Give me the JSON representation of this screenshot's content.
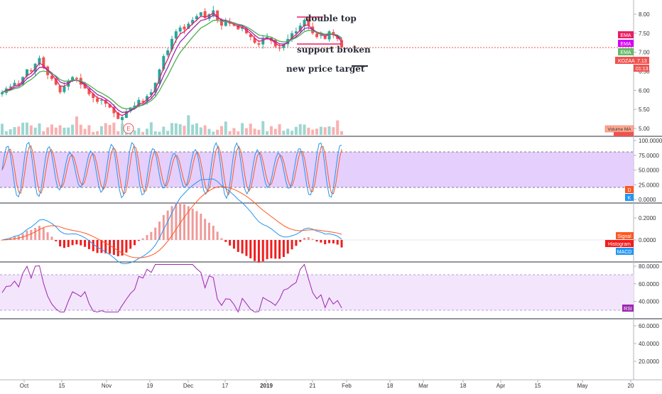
{
  "chart_data": {
    "type": "line",
    "symbol": "KOZAA",
    "last_price": "7.13",
    "countdown": "01:13",
    "price_axis": {
      "ticks": [
        "8.00",
        "7.50",
        "7.00",
        "6.50",
        "6.00",
        "5.50",
        "5.00"
      ]
    },
    "stoch_axis": {
      "ticks": [
        "100.0000",
        "75.0000",
        "50.0000",
        "25.0000",
        "0.0000"
      ],
      "band": [
        20,
        80
      ]
    },
    "macd_axis": {
      "ticks": [
        "0.2000",
        "0.0000"
      ]
    },
    "rsi_axis": {
      "ticks": [
        "80.0000",
        "60.0000",
        "40.0000"
      ],
      "band": [
        30,
        70
      ]
    },
    "extra_axis": {
      "ticks": [
        "60.0000",
        "40.0000",
        "20.0000"
      ]
    },
    "x_ticks": [
      "Oct",
      "15",
      "Nov",
      "19",
      "Dec",
      "17",
      "2019",
      "21",
      "Feb",
      "18",
      "Mar",
      "18",
      "Apr",
      "15",
      "May",
      "20"
    ],
    "x_tick_bold_index": 6,
    "annotations": {
      "double_top": "double top",
      "support_broken": "support broken",
      "new_price_target": "new price target"
    },
    "labels": {
      "ema1": "EMA",
      "ema2": "EMA",
      "ema3": "EMA",
      "volume_ma": "Volume MA",
      "volume": "Volume",
      "stoch_d": "D",
      "stoch_k": "K",
      "signal": "Signal",
      "histogram": "Histogram",
      "macd": "MACD",
      "rsi": "RSI",
      "event_marker": "E"
    },
    "colors": {
      "up": "#26a69a",
      "down": "#ef5350",
      "ema_fast": "#e91e63",
      "ema_mid": "#9c27b0",
      "ema_slow": "#4caf50",
      "stoch_band": "#e1c7fb",
      "rsi_band": "#f3e5fb",
      "macd_line": "#2196f3",
      "signal_line": "#ff5722",
      "rsi_line": "#9c27b0",
      "support": "#ef5350"
    },
    "price_series": {
      "x_start": "2018-09-24",
      "closes": [
        5.95,
        6.05,
        6.1,
        6.2,
        6.15,
        6.35,
        6.55,
        6.5,
        6.7,
        6.85,
        6.6,
        6.4,
        6.3,
        6.15,
        5.95,
        6.1,
        6.25,
        6.35,
        6.3,
        6.15,
        6.05,
        5.9,
        5.8,
        5.7,
        5.75,
        5.65,
        5.55,
        5.4,
        5.25,
        5.3,
        5.45,
        5.55,
        5.6,
        5.75,
        5.7,
        5.85,
        5.95,
        6.2,
        6.55,
        6.9,
        7.05,
        7.35,
        7.55,
        7.65,
        7.6,
        7.75,
        7.85,
        7.95,
        8.05,
        7.9,
        8.0,
        8.1,
        7.85,
        7.7,
        7.8,
        7.75,
        7.7,
        7.6,
        7.65,
        7.5,
        7.4,
        7.25,
        7.2,
        7.35,
        7.4,
        7.3,
        7.15,
        7.1,
        7.2,
        7.35,
        7.5,
        7.55,
        7.7,
        7.85,
        7.7,
        7.5,
        7.4,
        7.45,
        7.35,
        7.55,
        7.45,
        7.35,
        7.13
      ],
      "support_level": 7.15,
      "target_level": 6.65
    }
  }
}
